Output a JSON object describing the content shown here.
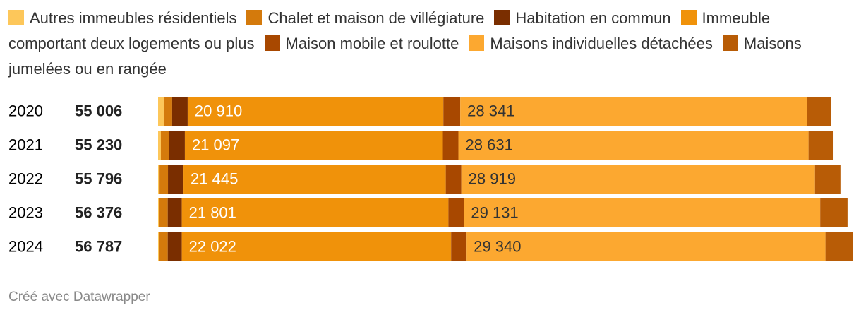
{
  "chart_data": {
    "type": "stacked-bar",
    "categories": [
      "2020",
      "2021",
      "2022",
      "2023",
      "2024"
    ],
    "totals": [
      55006,
      55230,
      55796,
      56376,
      56787
    ],
    "total_labels": [
      "55 006",
      "55 230",
      "55 796",
      "56 376",
      "56 787"
    ],
    "series": [
      {
        "name": "Autres immeubles résidentiels",
        "color": "#fdc75a",
        "values": [
          460,
          230,
          120,
          100,
          100
        ]
      },
      {
        "name": "Chalet et maison de villégiature",
        "color": "#d47a0c",
        "values": [
          690,
          690,
          690,
          690,
          690
        ]
      },
      {
        "name": "Habitation en commun",
        "color": "#7a2e00",
        "values": [
          1270,
          1270,
          1270,
          1150,
          1150
        ]
      },
      {
        "name": "Immeuble comportant deux logements ou plus",
        "color": "#f0920a",
        "values": [
          20910,
          21097,
          21445,
          21801,
          22022
        ],
        "value_labels": [
          "20 910",
          "21 097",
          "21 445",
          "21 801",
          "22 022"
        ]
      },
      {
        "name": "Maison mobile et roulotte",
        "color": "#a84800",
        "values": [
          1380,
          1270,
          1270,
          1270,
          1270
        ]
      },
      {
        "name": "Maisons individuelles détachées",
        "color": "#fca830",
        "values": [
          28341,
          28631,
          28919,
          29131,
          29340
        ],
        "value_labels": [
          "28 341",
          "28 631",
          "28 919",
          "29 131",
          "29 340"
        ]
      },
      {
        "name": "Maisons jumelées ou en rangée",
        "color": "#b85c06",
        "values": [
          1955,
          2042,
          2082,
          2234,
          2215
        ]
      }
    ]
  },
  "footer": "Créé avec Datawrapper"
}
